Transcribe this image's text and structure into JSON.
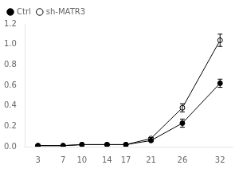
{
  "chart_data": {
    "type": "line",
    "x": [
      3,
      7,
      10,
      14,
      17,
      21,
      26,
      32
    ],
    "series": [
      {
        "name": "Ctrl",
        "color": "#000000",
        "marker": "circle",
        "values": [
          0.01,
          0.01,
          0.02,
          0.02,
          0.02,
          0.06,
          0.23,
          0.62
        ],
        "errors": [
          0.005,
          0.005,
          0.005,
          0.005,
          0.005,
          0.01,
          0.04,
          0.04
        ]
      },
      {
        "name": "sh-MATR3",
        "color": "#000000",
        "marker": "open_circle",
        "values": [
          0.01,
          0.01,
          0.02,
          0.02,
          0.02,
          0.08,
          0.38,
          1.04
        ],
        "errors": [
          0.005,
          0.005,
          0.005,
          0.005,
          0.005,
          0.01,
          0.04,
          0.06
        ]
      }
    ],
    "xlim": [
      1,
      34
    ],
    "xticks": [
      3,
      7,
      10,
      14,
      17,
      21,
      26,
      32
    ],
    "ylim": [
      0,
      1.2
    ],
    "yticks": [
      {
        "value": 0,
        "label": "0.0"
      },
      0.2,
      0.4,
      0.6,
      0.8,
      {
        "value": 1.0,
        "label": "1.0"
      },
      1.2
    ],
    "grid": false,
    "legend": "upper left"
  }
}
